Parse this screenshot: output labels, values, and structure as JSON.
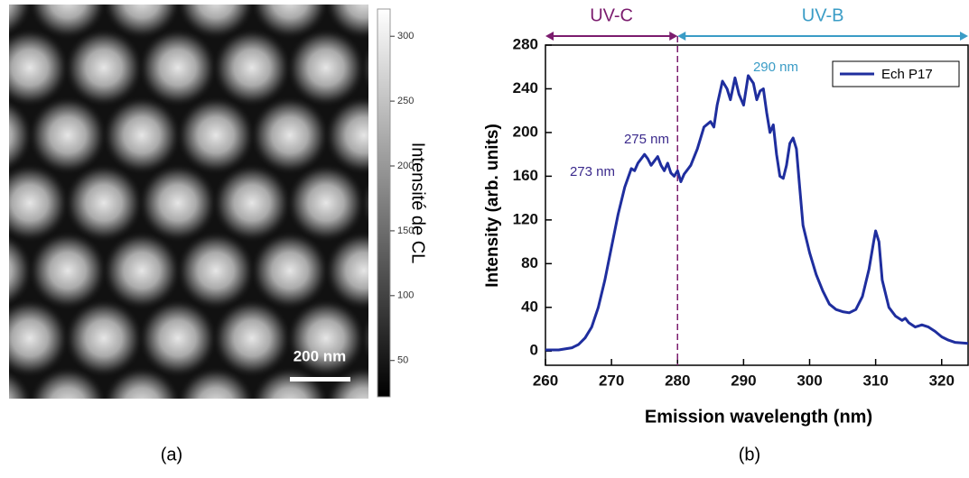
{
  "chart_data": [
    {
      "type": "image",
      "colorbar_label": "Intensité de CL",
      "clim": [
        22,
        321
      ],
      "cticks": [
        50,
        100,
        150,
        200,
        250,
        300
      ],
      "scale_bar": "200 nm",
      "caption": "(a)"
    },
    {
      "type": "line",
      "x_label": "Emission wavelength (nm)",
      "y_label": "Intensity (arb. units)",
      "caption": "(b)",
      "x": [
        260,
        262,
        264,
        265,
        266,
        267,
        268,
        269,
        270,
        271,
        272,
        273,
        273.5,
        274,
        275,
        275.5,
        276,
        277,
        277.5,
        278,
        278.5,
        279,
        279.5,
        280,
        280.5,
        281,
        282,
        283,
        284,
        285,
        285.5,
        286,
        286.8,
        287.5,
        288,
        288.7,
        289.3,
        290,
        290.7,
        291.5,
        292,
        292.5,
        293,
        293.5,
        294,
        294.5,
        295,
        295.5,
        296,
        296.5,
        297,
        297.5,
        298,
        298.5,
        299,
        300,
        301,
        302,
        303,
        304,
        305,
        306,
        307,
        308,
        309,
        309.7,
        310,
        310.5,
        311,
        312,
        313,
        314,
        314.5,
        315,
        316,
        317,
        318,
        319,
        320,
        321,
        322,
        324
      ],
      "series": [
        {
          "name": "Ech P17",
          "color": "#1f2e9e",
          "values": [
            1,
            1,
            3,
            6,
            12,
            22,
            40,
            65,
            95,
            125,
            150,
            167,
            165,
            172,
            180,
            176,
            170,
            178,
            170,
            165,
            172,
            163,
            160,
            165,
            155,
            162,
            170,
            185,
            205,
            210,
            205,
            225,
            247,
            240,
            230,
            250,
            235,
            225,
            252,
            245,
            230,
            238,
            240,
            218,
            200,
            207,
            180,
            160,
            158,
            170,
            190,
            195,
            185,
            150,
            115,
            90,
            70,
            55,
            43,
            38,
            36,
            35,
            38,
            50,
            75,
            100,
            110,
            100,
            65,
            40,
            32,
            28,
            30,
            26,
            22,
            24,
            22,
            18,
            13,
            10,
            8,
            7
          ]
        }
      ],
      "xlim": [
        260,
        324
      ],
      "ylim": [
        -13,
        280
      ],
      "xticks": [
        260,
        270,
        280,
        290,
        300,
        310,
        320
      ],
      "yticks": [
        0,
        40,
        80,
        120,
        160,
        200,
        240,
        280
      ],
      "divider": 280,
      "regions": [
        {
          "label": "UV-C",
          "range": [
            260,
            280
          ],
          "color": "#7b1c6e"
        },
        {
          "label": "UV-B",
          "range": [
            280,
            324
          ],
          "color": "#3a9cc6"
        }
      ],
      "annotations": [
        {
          "text": "273 nm",
          "color": "#3b2a8c"
        },
        {
          "text": "275 nm",
          "color": "#3b2a8c"
        },
        {
          "text": "290 nm",
          "color": "#3a9cc6"
        }
      ]
    }
  ]
}
